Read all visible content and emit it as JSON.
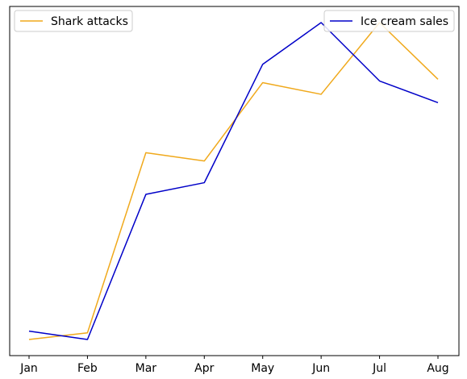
{
  "chart_data": [
    {
      "type": "line",
      "categories": [
        "Jan",
        "Feb",
        "Mar",
        "Apr",
        "May",
        "Jun",
        "Jul",
        "Aug"
      ],
      "series": [
        {
          "name": "Shark attacks",
          "color": "#f0a91c",
          "values": [
            0.0,
            0.04,
            1.12,
            1.07,
            1.54,
            1.47,
            1.9,
            1.56
          ]
        }
      ],
      "ylim": [
        -0.1,
        2.0
      ],
      "grid": false,
      "legend_position": "top-left",
      "y_ticks_visible": false
    },
    {
      "type": "line",
      "categories": [
        "Jan",
        "Feb",
        "Mar",
        "Apr",
        "May",
        "Jun",
        "Jul",
        "Aug"
      ],
      "series": [
        {
          "name": "Ice cream sales",
          "color": "#0000c8",
          "values": [
            0.05,
            0.0,
            0.87,
            0.94,
            1.65,
            1.9,
            1.55,
            1.42
          ]
        }
      ],
      "ylim": [
        -0.1,
        2.0
      ],
      "grid": false,
      "legend_position": "top-right",
      "y_ticks_visible": false
    }
  ]
}
